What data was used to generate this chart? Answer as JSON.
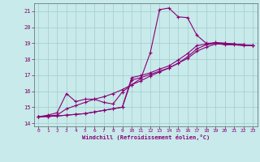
{
  "xlabel": "Windchill (Refroidissement éolien,°C)",
  "background_color": "#c8eaea",
  "grid_color": "#a0cccc",
  "line_color": "#880077",
  "spine_color": "#556666",
  "xlim": [
    -0.5,
    23.5
  ],
  "ylim": [
    13.8,
    21.5
  ],
  "yticks": [
    14,
    15,
    16,
    17,
    18,
    19,
    20,
    21
  ],
  "xticks": [
    0,
    1,
    2,
    3,
    4,
    5,
    6,
    7,
    8,
    9,
    10,
    11,
    12,
    13,
    14,
    15,
    16,
    17,
    18,
    19,
    20,
    21,
    22,
    23
  ],
  "lines": [
    {
      "x": [
        0,
        1,
        2,
        3,
        4,
        5,
        6,
        7,
        8,
        9,
        10,
        11,
        12,
        13,
        14,
        15,
        16,
        17,
        18,
        19,
        20,
        21,
        22,
        23
      ],
      "y": [
        14.4,
        14.5,
        14.65,
        15.85,
        15.35,
        15.5,
        15.5,
        15.3,
        15.2,
        15.95,
        16.4,
        16.8,
        18.4,
        21.1,
        21.2,
        20.65,
        20.6,
        19.5,
        19.0,
        19.0,
        18.9,
        18.9,
        18.85,
        18.85
      ]
    },
    {
      "x": [
        0,
        1,
        2,
        3,
        4,
        5,
        6,
        7,
        8,
        9,
        10,
        11,
        12,
        13,
        14,
        15,
        16,
        17,
        18,
        19,
        20,
        21,
        22,
        23
      ],
      "y": [
        14.4,
        14.45,
        14.5,
        14.9,
        15.1,
        15.3,
        15.5,
        15.65,
        15.85,
        16.1,
        16.4,
        16.65,
        16.95,
        17.2,
        17.45,
        17.75,
        18.05,
        18.5,
        18.75,
        18.95,
        18.95,
        18.95,
        18.9,
        18.85
      ]
    },
    {
      "x": [
        0,
        1,
        2,
        3,
        4,
        5,
        6,
        7,
        8,
        9,
        10,
        11,
        12,
        13,
        14,
        15,
        16,
        17,
        18,
        19,
        20,
        21,
        22,
        23
      ],
      "y": [
        14.4,
        14.42,
        14.45,
        14.5,
        14.55,
        14.6,
        14.7,
        14.8,
        14.9,
        15.0,
        16.7,
        16.85,
        17.05,
        17.25,
        17.45,
        17.75,
        18.15,
        18.65,
        18.9,
        19.0,
        19.0,
        18.95,
        18.9,
        18.85
      ]
    },
    {
      "x": [
        0,
        1,
        2,
        3,
        4,
        5,
        6,
        7,
        8,
        9,
        10,
        11,
        12,
        13,
        14,
        15,
        16,
        17,
        18,
        19,
        20,
        21,
        22,
        23
      ],
      "y": [
        14.4,
        14.42,
        14.45,
        14.5,
        14.55,
        14.6,
        14.7,
        14.8,
        14.9,
        15.0,
        16.85,
        16.98,
        17.15,
        17.38,
        17.58,
        17.95,
        18.35,
        18.85,
        18.95,
        19.05,
        19.0,
        18.95,
        18.9,
        18.85
      ]
    }
  ]
}
